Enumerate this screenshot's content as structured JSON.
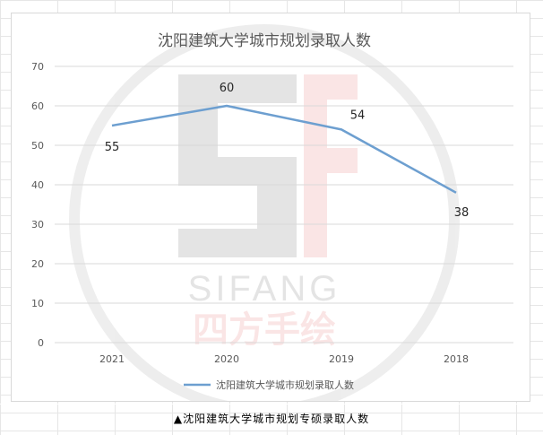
{
  "caption": {
    "marker": "▲",
    "text": "沈阳建筑大学城市规划专硕录取人数"
  },
  "watermark": {
    "brand": "SIFANG",
    "chinese": "四方手绘",
    "icon": "sifang-logo-icon"
  },
  "colors": {
    "series_line": "#6d9fd0",
    "grid": "#d9d9d9",
    "title": "#595959",
    "tick": "#595959",
    "label": "#262626"
  },
  "chart_data": {
    "type": "line",
    "title": "沈阳建筑大学城市规划录取人数",
    "categories": [
      "2021",
      "2020",
      "2019",
      "2018"
    ],
    "series": [
      {
        "name": "沈阳建筑大学城市规划录取人数",
        "values": [
          55,
          60,
          54,
          38
        ]
      }
    ],
    "data_labels": [
      "55",
      "60",
      "54",
      "38"
    ],
    "ylim": [
      0,
      70
    ],
    "yticks": [
      0,
      10,
      20,
      30,
      40,
      50,
      60,
      70
    ],
    "xlabel": "",
    "ylabel": "",
    "grid": true,
    "legend": "bottom"
  }
}
